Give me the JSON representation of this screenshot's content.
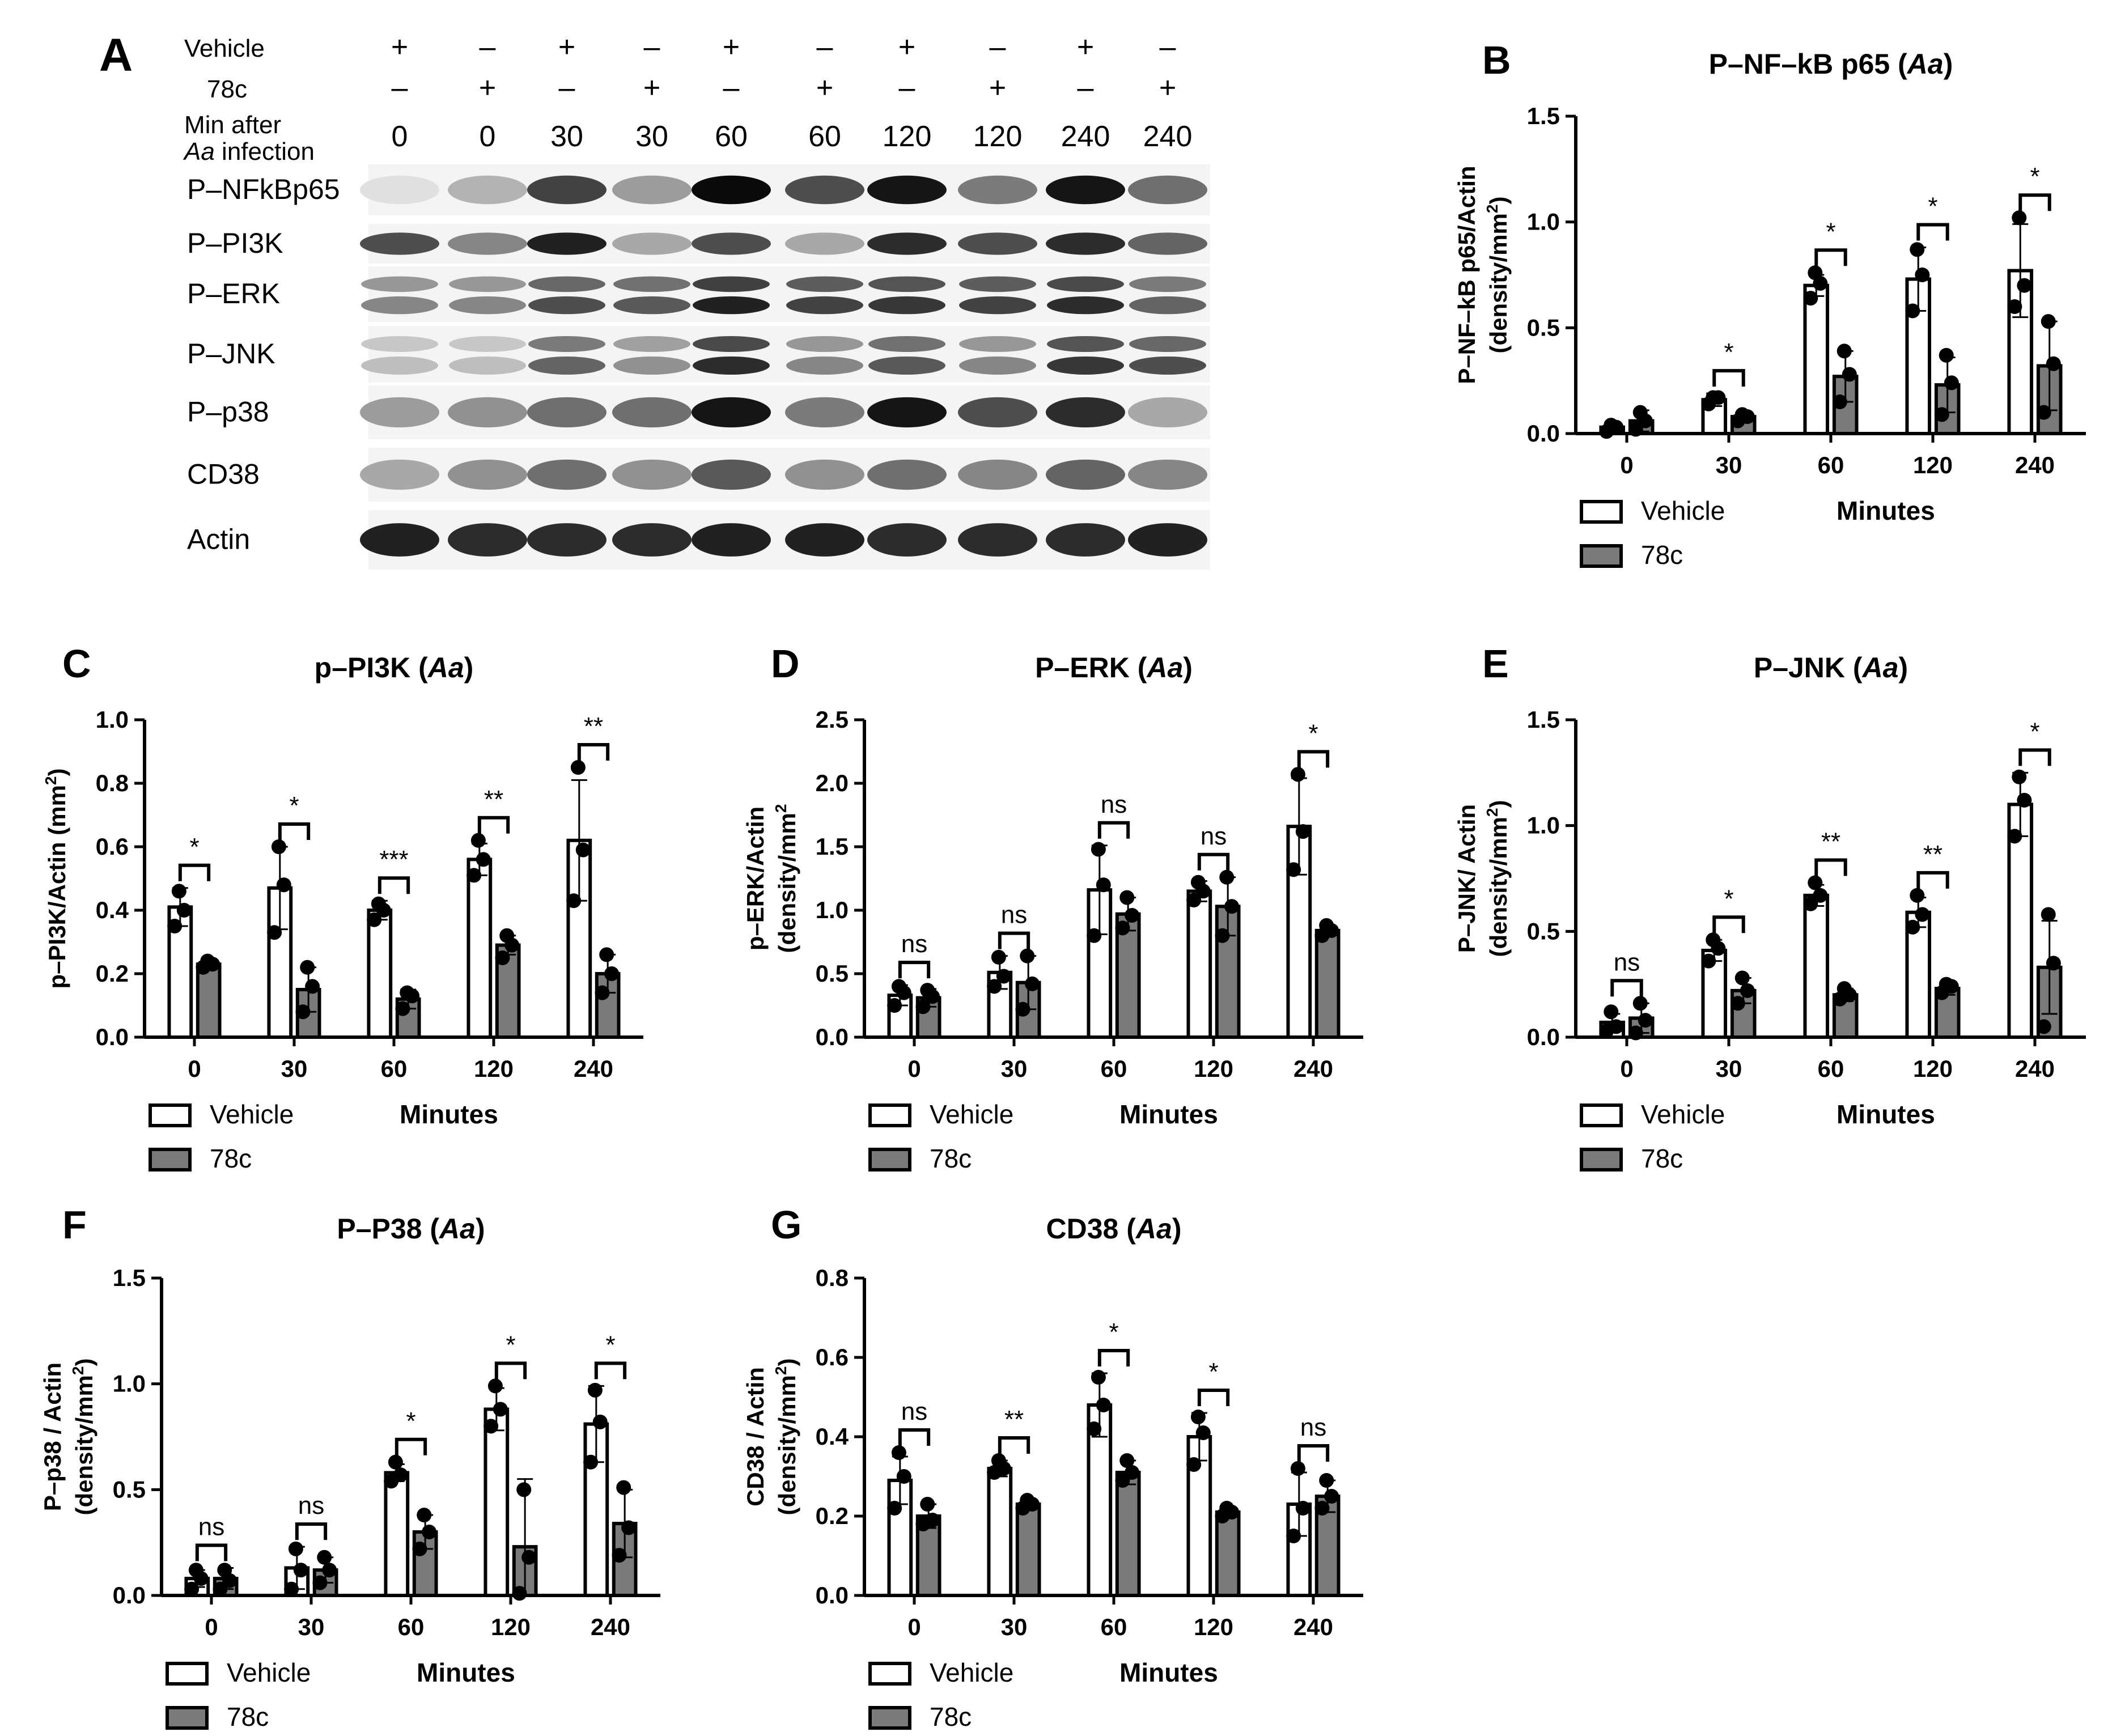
{
  "blot": {
    "panel_label": "A",
    "row_labels": [
      "Vehicle",
      "78c"
    ],
    "min_label_line1": "Min after",
    "min_label_line2_italic": "Aa",
    "min_label_line2_rest": " infection",
    "vehicle_signs": [
      "+",
      "–",
      "+",
      "–",
      "+",
      "–",
      "+",
      "–",
      "+",
      "–"
    ],
    "c78_signs": [
      "–",
      "+",
      "–",
      "+",
      "–",
      "+",
      "–",
      "+",
      "–",
      "+"
    ],
    "minutes": [
      "0",
      "0",
      "30",
      "30",
      "60",
      "60",
      "120",
      "120",
      "240",
      "240"
    ],
    "bands": [
      {
        "name": "P–NFkBp65",
        "intensity": [
          0.05,
          0.25,
          0.75,
          0.35,
          1.0,
          0.7,
          0.95,
          0.5,
          0.95,
          0.55
        ],
        "lines": 1
      },
      {
        "name": "P–PI3K",
        "intensity": [
          0.7,
          0.45,
          0.9,
          0.3,
          0.7,
          0.3,
          0.85,
          0.7,
          0.85,
          0.6
        ],
        "lines": 1
      },
      {
        "name": "P–ERK",
        "intensity": [
          0.45,
          0.45,
          0.7,
          0.65,
          0.9,
          0.75,
          0.8,
          0.75,
          0.85,
          0.6
        ],
        "lines": 2
      },
      {
        "name": "P–JNK",
        "intensity": [
          0.2,
          0.2,
          0.6,
          0.4,
          0.85,
          0.45,
          0.65,
          0.45,
          0.8,
          0.7
        ],
        "lines": 2
      },
      {
        "name": "P–p38",
        "intensity": [
          0.35,
          0.4,
          0.55,
          0.55,
          0.95,
          0.5,
          0.95,
          0.7,
          0.85,
          0.3
        ],
        "lines": 1
      },
      {
        "name": "CD38",
        "intensity": [
          0.3,
          0.4,
          0.55,
          0.4,
          0.65,
          0.4,
          0.55,
          0.45,
          0.6,
          0.45
        ],
        "lines": 1
      },
      {
        "name": "Actin",
        "intensity": [
          0.9,
          0.85,
          0.85,
          0.85,
          0.9,
          0.9,
          0.85,
          0.85,
          0.85,
          0.9
        ],
        "lines": 1
      }
    ]
  },
  "colors": {
    "vehicle": "#ffffff",
    "c78": "#7a7a7a",
    "ink": "#000000"
  },
  "legend": {
    "vehicle": "Vehicle",
    "c78": "78c",
    "xlabel": "Minutes"
  },
  "chart_data": [
    {
      "id": "B",
      "type": "bar",
      "title_main": "P–NF–kB p65 (",
      "title_italic": "Aa",
      "title_end": ")",
      "ylabel_line1": "P–NF–kB p65/Actin",
      "ylabel_line2": "(density/mm",
      "ylabel_sup": "2",
      "ylabel_close": ")",
      "xlabel": "Minutes",
      "categories": [
        "0",
        "30",
        "60",
        "120",
        "240"
      ],
      "ylim": [
        0,
        1.5
      ],
      "yticks": [
        "0.0",
        "0.5",
        "1.0",
        "1.5"
      ],
      "ytick_values": [
        0,
        0.5,
        1.0,
        1.5
      ],
      "series": [
        {
          "name": "Vehicle",
          "values": [
            0.03,
            0.16,
            0.7,
            0.73,
            0.77
          ],
          "err": [
            0.02,
            0.03,
            0.05,
            0.15,
            0.22
          ],
          "points": [
            [
              0.01,
              0.03,
              0.04
            ],
            [
              0.14,
              0.17,
              0.17
            ],
            [
              0.64,
              0.71,
              0.76
            ],
            [
              0.58,
              0.75,
              0.87
            ],
            [
              0.6,
              0.7,
              1.02
            ]
          ]
        },
        {
          "name": "78c",
          "values": [
            0.06,
            0.08,
            0.27,
            0.23,
            0.32
          ],
          "err": [
            0.05,
            0.02,
            0.12,
            0.13,
            0.21
          ],
          "points": [
            [
              0.02,
              0.06,
              0.1
            ],
            [
              0.06,
              0.08,
              0.09
            ],
            [
              0.15,
              0.28,
              0.39
            ],
            [
              0.09,
              0.24,
              0.37
            ],
            [
              0.1,
              0.33,
              0.53
            ]
          ]
        }
      ],
      "sig": [
        "",
        "*",
        "*",
        "*",
        "*"
      ]
    },
    {
      "id": "C",
      "type": "bar",
      "title_main": "p–PI3K (",
      "title_italic": "Aa",
      "title_end": ")",
      "ylabel_line1": "p–PI3K/Actin (mm",
      "ylabel_line2": "",
      "ylabel_sup": "2",
      "ylabel_close": ")",
      "xlabel": "Minutes",
      "categories": [
        "0",
        "30",
        "60",
        "120",
        "240"
      ],
      "ylim": [
        0,
        1.0
      ],
      "yticks": [
        "0.0",
        "0.2",
        "0.4",
        "0.6",
        "0.8",
        "1.0"
      ],
      "ytick_values": [
        0,
        0.2,
        0.4,
        0.6,
        0.8,
        1.0
      ],
      "series": [
        {
          "name": "Vehicle",
          "values": [
            0.41,
            0.47,
            0.4,
            0.56,
            0.62
          ],
          "err": [
            0.06,
            0.13,
            0.03,
            0.05,
            0.19
          ],
          "points": [
            [
              0.35,
              0.4,
              0.46
            ],
            [
              0.33,
              0.48,
              0.6
            ],
            [
              0.37,
              0.4,
              0.42
            ],
            [
              0.51,
              0.56,
              0.62
            ],
            [
              0.43,
              0.59,
              0.85
            ]
          ]
        },
        {
          "name": "78c",
          "values": [
            0.23,
            0.15,
            0.12,
            0.29,
            0.2
          ],
          "err": [
            0.01,
            0.07,
            0.03,
            0.03,
            0.06
          ],
          "points": [
            [
              0.22,
              0.23,
              0.24
            ],
            [
              0.08,
              0.16,
              0.22
            ],
            [
              0.09,
              0.13,
              0.14
            ],
            [
              0.25,
              0.29,
              0.32
            ],
            [
              0.14,
              0.2,
              0.26
            ]
          ]
        }
      ],
      "sig": [
        "*",
        "*",
        "***",
        "**",
        "**"
      ]
    },
    {
      "id": "D",
      "type": "bar",
      "title_main": "P–ERK (",
      "title_italic": "Aa",
      "title_end": ")",
      "ylabel_line1": "p–ERK/Actin",
      "ylabel_line2": "(density/mm",
      "ylabel_sup": "2",
      "ylabel_close": "",
      "xlabel": "Minutes",
      "categories": [
        "0",
        "30",
        "60",
        "120",
        "240"
      ],
      "ylim": [
        0,
        2.5
      ],
      "yticks": [
        "0.0",
        "0.5",
        "1.0",
        "1.5",
        "2.0",
        "2.5"
      ],
      "ytick_values": [
        0,
        0.5,
        1.0,
        1.5,
        2.0,
        2.5
      ],
      "series": [
        {
          "name": "Vehicle",
          "values": [
            0.33,
            0.51,
            1.16,
            1.15,
            1.66
          ],
          "err": [
            0.08,
            0.13,
            0.35,
            0.08,
            0.38
          ],
          "points": [
            [
              0.25,
              0.35,
              0.4
            ],
            [
              0.4,
              0.48,
              0.63
            ],
            [
              0.8,
              1.2,
              1.48
            ],
            [
              1.08,
              1.15,
              1.22
            ],
            [
              1.32,
              1.62,
              2.07
            ]
          ]
        },
        {
          "name": "78c",
          "values": [
            0.31,
            0.43,
            0.97,
            1.03,
            0.84
          ],
          "err": [
            0.07,
            0.21,
            0.13,
            0.23,
            0.04
          ],
          "points": [
            [
              0.24,
              0.32,
              0.37
            ],
            [
              0.22,
              0.42,
              0.64
            ],
            [
              0.86,
              0.96,
              1.1
            ],
            [
              0.8,
              1.03,
              1.26
            ],
            [
              0.8,
              0.84,
              0.88
            ]
          ]
        }
      ],
      "sig": [
        "ns",
        "ns",
        "ns",
        "ns",
        "*"
      ]
    },
    {
      "id": "E",
      "type": "bar",
      "title_main": "P–JNK (",
      "title_italic": "Aa",
      "title_end": ")",
      "ylabel_line1": "P–JNK/ Actin",
      "ylabel_line2": "(density/mm",
      "ylabel_sup": "2",
      "ylabel_close": ")",
      "xlabel": "Minutes",
      "categories": [
        "0",
        "30",
        "60",
        "120",
        "240"
      ],
      "ylim": [
        0,
        1.5
      ],
      "yticks": [
        "0.0",
        "0.5",
        "1.0",
        "1.5"
      ],
      "ytick_values": [
        0,
        0.5,
        1.0,
        1.5
      ],
      "series": [
        {
          "name": "Vehicle",
          "values": [
            0.07,
            0.41,
            0.67,
            0.59,
            1.1
          ],
          "err": [
            0.04,
            0.05,
            0.05,
            0.07,
            0.15
          ],
          "points": [
            [
              0.03,
              0.05,
              0.12
            ],
            [
              0.36,
              0.42,
              0.46
            ],
            [
              0.63,
              0.67,
              0.73
            ],
            [
              0.52,
              0.58,
              0.67
            ],
            [
              0.95,
              1.12,
              1.23
            ]
          ]
        },
        {
          "name": "78c",
          "values": [
            0.09,
            0.22,
            0.2,
            0.23,
            0.33
          ],
          "err": [
            0.07,
            0.06,
            0.03,
            0.03,
            0.22
          ],
          "points": [
            [
              0.02,
              0.08,
              0.16
            ],
            [
              0.16,
              0.22,
              0.28
            ],
            [
              0.18,
              0.2,
              0.23
            ],
            [
              0.21,
              0.24,
              0.25
            ],
            [
              0.05,
              0.35,
              0.58
            ]
          ]
        }
      ],
      "sig": [
        "ns",
        "*",
        "**",
        "**",
        "*"
      ]
    },
    {
      "id": "F",
      "type": "bar",
      "title_main": "P–P38 (",
      "title_italic": "Aa",
      "title_end": ")",
      "ylabel_line1": "P–p38 / Actin",
      "ylabel_line2": "(density/mm",
      "ylabel_sup": "2",
      "ylabel_close": ")",
      "xlabel": "Minutes",
      "categories": [
        "0",
        "30",
        "60",
        "120",
        "240"
      ],
      "ylim": [
        0,
        1.5
      ],
      "yticks": [
        "0.0",
        "0.5",
        "1.0",
        "1.5"
      ],
      "ytick_values": [
        0,
        0.5,
        1.0,
        1.5
      ],
      "series": [
        {
          "name": "Vehicle",
          "values": [
            0.08,
            0.13,
            0.58,
            0.88,
            0.81
          ],
          "err": [
            0.04,
            0.1,
            0.04,
            0.1,
            0.18
          ],
          "points": [
            [
              0.03,
              0.08,
              0.12
            ],
            [
              0.03,
              0.12,
              0.22
            ],
            [
              0.54,
              0.57,
              0.63
            ],
            [
              0.8,
              0.88,
              0.99
            ],
            [
              0.63,
              0.82,
              0.97
            ]
          ]
        },
        {
          "name": "78c",
          "values": [
            0.08,
            0.12,
            0.3,
            0.23,
            0.34
          ],
          "err": [
            0.05,
            0.06,
            0.08,
            0.32,
            0.16
          ],
          "points": [
            [
              0.03,
              0.07,
              0.12
            ],
            [
              0.06,
              0.12,
              0.18
            ],
            [
              0.22,
              0.3,
              0.38
            ],
            [
              0.01,
              0.18,
              0.5
            ],
            [
              0.19,
              0.32,
              0.51
            ]
          ]
        }
      ],
      "sig": [
        "ns",
        "ns",
        "*",
        "*",
        "*"
      ]
    },
    {
      "id": "G",
      "type": "bar",
      "title_main": "CD38 (",
      "title_italic": "Aa",
      "title_end": ")",
      "ylabel_line1": "CD38 / Actin",
      "ylabel_line2": "(density/mm",
      "ylabel_sup": "2",
      "ylabel_close": ")",
      "xlabel": "Minutes",
      "categories": [
        "0",
        "30",
        "60",
        "120",
        "240"
      ],
      "ylim": [
        0,
        0.8
      ],
      "yticks": [
        "0.0",
        "0.2",
        "0.4",
        "0.6",
        "0.8"
      ],
      "ytick_values": [
        0,
        0.2,
        0.4,
        0.6,
        0.8
      ],
      "series": [
        {
          "name": "Vehicle",
          "values": [
            0.29,
            0.32,
            0.48,
            0.4,
            0.23
          ],
          "err": [
            0.06,
            0.02,
            0.08,
            0.06,
            0.08
          ],
          "points": [
            [
              0.22,
              0.3,
              0.36
            ],
            [
              0.31,
              0.32,
              0.34
            ],
            [
              0.42,
              0.48,
              0.55
            ],
            [
              0.33,
              0.41,
              0.45
            ],
            [
              0.15,
              0.22,
              0.32
            ]
          ]
        },
        {
          "name": "78c",
          "values": [
            0.2,
            0.23,
            0.31,
            0.21,
            0.25
          ],
          "err": [
            0.03,
            0.01,
            0.03,
            0.01,
            0.04
          ],
          "points": [
            [
              0.18,
              0.19,
              0.23
            ],
            [
              0.22,
              0.23,
              0.24
            ],
            [
              0.29,
              0.31,
              0.34
            ],
            [
              0.2,
              0.21,
              0.22
            ],
            [
              0.22,
              0.25,
              0.29
            ]
          ]
        }
      ],
      "sig": [
        "ns",
        "**",
        "*",
        "*",
        "ns"
      ]
    }
  ]
}
